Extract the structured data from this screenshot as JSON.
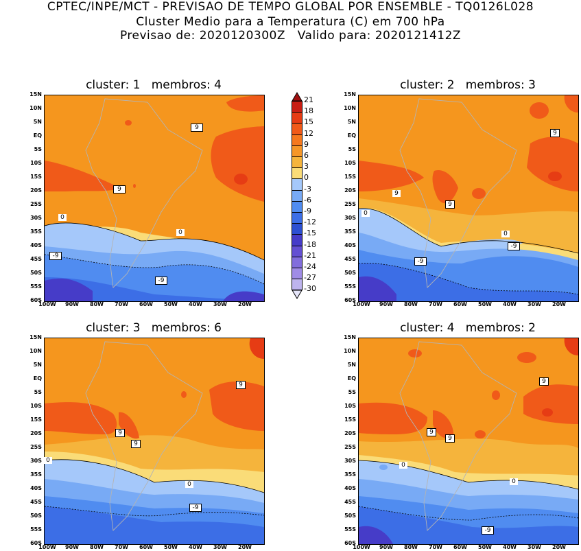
{
  "header": {
    "line1": "CPTEC/INPE/MCT - PREVISAO DE TEMPO GLOBAL POR ENSEMBLE - TQ0126L028",
    "line2": "Cluster Medio para a Temperatura (C) em 700 hPa",
    "line3": "Previsao de: 2020120300Z   Valido para: 2020121412Z"
  },
  "panels": [
    {
      "title": "cluster: 1   membros: 4",
      "labels": {
        "nine_a": "9",
        "nine_b": "9",
        "zero_a": "0",
        "zero_b": "0",
        "m9_a": "-9",
        "m9_b": "-9"
      }
    },
    {
      "title": "cluster: 2   membros: 3",
      "labels": {
        "nine_a": "9",
        "nine_b": "9",
        "nine_c": "9",
        "zero_a": "0",
        "zero_b": "0",
        "m9_a": "-9",
        "m9_b": "-9"
      }
    },
    {
      "title": "cluster: 3   membros: 6",
      "labels": {
        "nine_a": "9",
        "nine_b": "9",
        "nine_c": "9",
        "zero_a": "0",
        "zero_b": "0",
        "m9_a": "-9"
      }
    },
    {
      "title": "cluster: 4   membros: 2",
      "labels": {
        "nine_a": "9",
        "nine_b": "9",
        "nine_c": "9",
        "zero_a": "0",
        "zero_b": "0",
        "m9_a": "-9"
      }
    }
  ],
  "lat_labels": [
    "15N",
    "10N",
    "5N",
    "EQ",
    "5S",
    "10S",
    "15S",
    "20S",
    "25S",
    "30S",
    "35S",
    "40S",
    "45S",
    "50S",
    "55S",
    "60S"
  ],
  "lon_labels": [
    "100W",
    "90W",
    "80W",
    "70W",
    "60W",
    "50W",
    "40W",
    "30W",
    "20W"
  ],
  "colorbar": {
    "labels": [
      "21",
      "18",
      "15",
      "12",
      "9",
      "6",
      "3",
      "0",
      "-3",
      "-6",
      "-9",
      "-12",
      "-15",
      "-18",
      "-21",
      "-24",
      "-27",
      "-30"
    ],
    "colors": [
      "#a01010",
      "#c81e14",
      "#e63c14",
      "#f05a19",
      "#f5781e",
      "#f59628",
      "#f5b43c",
      "#fadc78",
      "#a5c8fa",
      "#78aaf5",
      "#508cf0",
      "#3c6ee6",
      "#2d50d2",
      "#463cc8",
      "#6450d2",
      "#826edc",
      "#a08ce6",
      "#beb4ee",
      "#e6e6fa"
    ]
  }
}
